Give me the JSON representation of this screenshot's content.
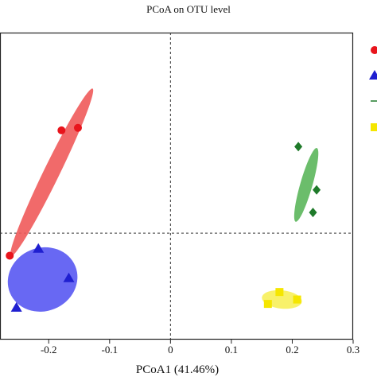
{
  "chart_data": {
    "type": "scatter",
    "title": "PCoA on OTU level",
    "xlabel": "PCoA1 (41.46%)",
    "ylabel": "",
    "xlim": [
      -0.28,
      0.3
    ],
    "ylim": [
      -0.17,
      0.32
    ],
    "x_ticks": [
      -0.2,
      -0.1,
      0,
      0.1,
      0.2,
      0.3
    ],
    "x_tick_labels": [
      "-0.2",
      "-0.1",
      "0",
      "0.1",
      "0.2",
      "0.3"
    ],
    "reference_lines": {
      "x": 0,
      "y": 0
    },
    "legend_position": "right (partially cropped)",
    "series": [
      {
        "color": "#e8141c",
        "marker": "circle",
        "points": [
          {
            "x": -0.264,
            "y": -0.036
          },
          {
            "x": -0.179,
            "y": 0.164
          },
          {
            "x": -0.152,
            "y": 0.168
          }
        ],
        "ellipse": {
          "cx": -0.195,
          "cy": 0.097,
          "semi_major": 0.153,
          "semi_minor": 0.013,
          "rotation_deg": -64,
          "fill": "#f05a5a",
          "opacity": 0.9
        }
      },
      {
        "color": "#1f1fd0",
        "marker": "triangle",
        "points": [
          {
            "x": -0.217,
            "y": -0.025
          },
          {
            "x": -0.167,
            "y": -0.072
          },
          {
            "x": -0.253,
            "y": -0.119
          }
        ],
        "ellipse": {
          "cx": -0.21,
          "cy": -0.074,
          "semi_major": 0.058,
          "semi_minor": 0.052,
          "rotation_deg": -22,
          "fill": "#5858f2",
          "opacity": 0.9
        }
      },
      {
        "color": "#1f7a2a",
        "marker": "diamond",
        "points": [
          {
            "x": 0.21,
            "y": 0.138
          },
          {
            "x": 0.24,
            "y": 0.069
          },
          {
            "x": 0.234,
            "y": 0.033
          }
        ],
        "ellipse": {
          "cx": 0.223,
          "cy": 0.077,
          "semi_major": 0.063,
          "semi_minor": 0.01,
          "rotation_deg": -74,
          "fill": "#5bb65b",
          "opacity": 0.9
        }
      },
      {
        "color": "#f5e600",
        "marker": "square",
        "points": [
          {
            "x": 0.179,
            "y": -0.094
          },
          {
            "x": 0.16,
            "y": -0.113
          },
          {
            "x": 0.208,
            "y": -0.106
          }
        ],
        "ellipse": {
          "cx": 0.183,
          "cy": -0.106,
          "semi_major": 0.033,
          "semi_minor": 0.015,
          "rotation_deg": 6,
          "fill": "#f7f05a",
          "opacity": 0.9
        }
      }
    ]
  }
}
